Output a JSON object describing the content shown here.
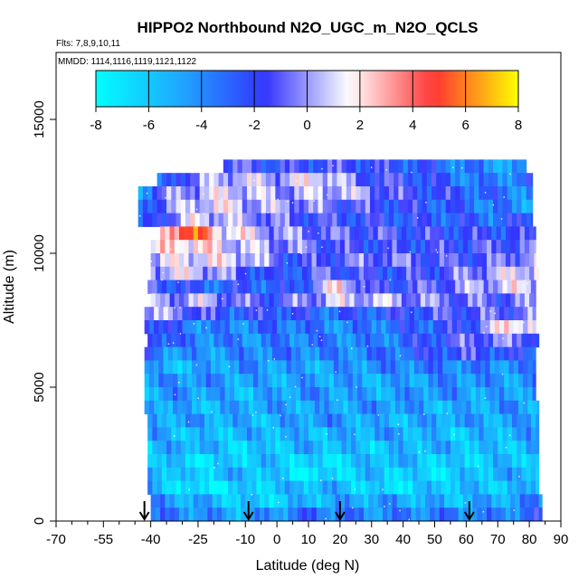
{
  "chart_data": {
    "type": "heatmap",
    "title": "HIPPO2 Northbound N2O_UGC_m_N2O_QCLS",
    "flights_label": "Flts: 7,8,9,10,11",
    "dates_label": "MMDD: 1114,1116,1119,1121,1122",
    "xlabel": "Latitude (deg N)",
    "ylabel": "Altitude (m)",
    "xlim": [
      -70,
      90
    ],
    "ylim": [
      0,
      17500
    ],
    "xticks": [
      -70,
      -55,
      -40,
      -25,
      -10,
      0,
      10,
      20,
      30,
      40,
      50,
      60,
      70,
      80,
      90
    ],
    "xtick_labels": [
      "-70",
      "-55",
      "-40",
      "-25",
      "-10",
      "0",
      "10",
      "20",
      "30",
      "40",
      "50",
      "60",
      "70",
      "80",
      "90"
    ],
    "xminor_ticks": [
      -65,
      -60,
      -50,
      -45,
      -35,
      -30,
      -20,
      -15,
      -5,
      5,
      15,
      25,
      35,
      45,
      55,
      65,
      75,
      85
    ],
    "yticks": [
      0,
      5000,
      10000,
      15000
    ],
    "ytick_labels": [
      "0",
      "5000",
      "10000",
      "15000"
    ],
    "colorbar": {
      "range": [
        -8,
        8
      ],
      "ticks": [
        "-8",
        "-6",
        "-4",
        "-2",
        "0",
        "2",
        "4",
        "6",
        "8"
      ],
      "colors": [
        "#00ffff",
        "#1fa8ff",
        "#3333ff",
        "#ffffff",
        "#ff3333",
        "#ffff00"
      ]
    },
    "profile_markers_lat": [
      -42,
      -9,
      20,
      61
    ],
    "bands": [
      {
        "alt_bot": 13000,
        "alt_top": 13500,
        "lat_min": -17,
        "lat_max": 79,
        "stops": [
          [
            -17,
            -1
          ],
          [
            0,
            -2
          ],
          [
            20,
            -1.5
          ],
          [
            45,
            -2.5
          ],
          [
            65,
            -4
          ],
          [
            79,
            -5
          ]
        ]
      },
      {
        "alt_bot": 12500,
        "alt_top": 13000,
        "lat_min": -38,
        "lat_max": 81,
        "stops": [
          [
            -38,
            -5
          ],
          [
            -30,
            -1
          ],
          [
            -15,
            0.8
          ],
          [
            0,
            0.3
          ],
          [
            15,
            1.5
          ],
          [
            25,
            -1
          ],
          [
            45,
            -2
          ],
          [
            65,
            -4
          ],
          [
            81,
            -3
          ]
        ]
      },
      {
        "alt_bot": 12000,
        "alt_top": 12500,
        "lat_min": -44,
        "lat_max": 81,
        "stops": [
          [
            -44,
            -5
          ],
          [
            -38,
            -1
          ],
          [
            -22,
            0.8
          ],
          [
            -10,
            1
          ],
          [
            0,
            0
          ],
          [
            20,
            0.8
          ],
          [
            40,
            -1.5
          ],
          [
            60,
            -2.5
          ],
          [
            81,
            -4
          ]
        ]
      },
      {
        "alt_bot": 11500,
        "alt_top": 12000,
        "lat_min": -44,
        "lat_max": 81,
        "stops": [
          [
            -44,
            -4
          ],
          [
            -36,
            -0.5
          ],
          [
            -20,
            1.5
          ],
          [
            -10,
            0.5
          ],
          [
            5,
            0
          ],
          [
            20,
            -1
          ],
          [
            40,
            -2
          ],
          [
            60,
            -3
          ],
          [
            81,
            -4.5
          ]
        ]
      },
      {
        "alt_bot": 11000,
        "alt_top": 11500,
        "lat_min": -44,
        "lat_max": 81,
        "stops": [
          [
            -44,
            -4
          ],
          [
            -36,
            -1
          ],
          [
            -25,
            1.2
          ],
          [
            -10,
            0
          ],
          [
            10,
            -1.5
          ],
          [
            30,
            -2
          ],
          [
            50,
            -2.5
          ],
          [
            70,
            -3
          ],
          [
            81,
            -2
          ]
        ]
      },
      {
        "alt_bot": 10500,
        "alt_top": 11000,
        "lat_min": -37,
        "lat_max": 82,
        "stops": [
          [
            -37,
            2
          ],
          [
            -30,
            5.5
          ],
          [
            -25,
            5
          ],
          [
            -18,
            2
          ],
          [
            0,
            0
          ],
          [
            20,
            -1
          ],
          [
            40,
            -1.5
          ],
          [
            60,
            -2
          ],
          [
            82,
            -2
          ]
        ]
      },
      {
        "alt_bot": 10000,
        "alt_top": 10500,
        "lat_min": -40,
        "lat_max": 82,
        "stops": [
          [
            -40,
            1
          ],
          [
            -30,
            2.5
          ],
          [
            -15,
            1
          ],
          [
            0,
            0
          ],
          [
            20,
            -1.5
          ],
          [
            40,
            -2
          ],
          [
            60,
            -1.5
          ],
          [
            82,
            -1
          ]
        ]
      },
      {
        "alt_bot": 9500,
        "alt_top": 10000,
        "lat_min": -40,
        "lat_max": 82,
        "stops": [
          [
            -40,
            0.5
          ],
          [
            -25,
            1.5
          ],
          [
            -10,
            1
          ],
          [
            5,
            -2
          ],
          [
            20,
            -1
          ],
          [
            35,
            -0.5
          ],
          [
            55,
            -1.5
          ],
          [
            70,
            -1
          ],
          [
            82,
            0.5
          ]
        ]
      },
      {
        "alt_bot": 9000,
        "alt_top": 9500,
        "lat_min": -40,
        "lat_max": 83,
        "stops": [
          [
            -40,
            0.5
          ],
          [
            -25,
            1
          ],
          [
            -10,
            -1.5
          ],
          [
            0,
            -3
          ],
          [
            15,
            -1
          ],
          [
            30,
            -2
          ],
          [
            50,
            -1.5
          ],
          [
            70,
            0.5
          ],
          [
            83,
            1.5
          ]
        ]
      },
      {
        "alt_bot": 8500,
        "alt_top": 9000,
        "lat_min": -41,
        "lat_max": 82,
        "stops": [
          [
            -41,
            -1
          ],
          [
            -25,
            -3
          ],
          [
            -10,
            -2.5
          ],
          [
            5,
            -3
          ],
          [
            20,
            2
          ],
          [
            30,
            -2
          ],
          [
            50,
            -1
          ],
          [
            70,
            0.8
          ],
          [
            82,
            1
          ]
        ]
      },
      {
        "alt_bot": 8000,
        "alt_top": 8500,
        "lat_min": -40,
        "lat_max": 82,
        "stops": [
          [
            -40,
            -0.5
          ],
          [
            -25,
            0.5
          ],
          [
            -10,
            -1
          ],
          [
            0,
            -1.5
          ],
          [
            15,
            0.5
          ],
          [
            30,
            0.8
          ],
          [
            50,
            -0.5
          ],
          [
            70,
            -1
          ],
          [
            82,
            -0.5
          ]
        ]
      },
      {
        "alt_bot": 7500,
        "alt_top": 8000,
        "lat_min": -42,
        "lat_max": 82,
        "stops": [
          [
            -42,
            0.3
          ],
          [
            -30,
            -0.5
          ],
          [
            -15,
            -2.5
          ],
          [
            0,
            -2
          ],
          [
            15,
            -3
          ],
          [
            30,
            -2.5
          ],
          [
            50,
            -1.5
          ],
          [
            70,
            -1
          ],
          [
            82,
            -0.5
          ]
        ]
      },
      {
        "alt_bot": 7000,
        "alt_top": 7500,
        "lat_min": -42,
        "lat_max": 82,
        "stops": [
          [
            -42,
            -1
          ],
          [
            -30,
            -3.5
          ],
          [
            -15,
            -4
          ],
          [
            0,
            -3
          ],
          [
            20,
            -4
          ],
          [
            40,
            -3
          ],
          [
            60,
            -2
          ],
          [
            75,
            2.5
          ],
          [
            82,
            1
          ]
        ]
      },
      {
        "alt_bot": 6500,
        "alt_top": 7000,
        "lat_min": -41,
        "lat_max": 83,
        "stops": [
          [
            -41,
            -1
          ],
          [
            -30,
            -3.5
          ],
          [
            -10,
            -4
          ],
          [
            10,
            -3.5
          ],
          [
            30,
            -4
          ],
          [
            50,
            -2
          ],
          [
            65,
            -0.5
          ],
          [
            83,
            -1
          ]
        ]
      },
      {
        "alt_bot": 6000,
        "alt_top": 6500,
        "lat_min": -42,
        "lat_max": 82,
        "stops": [
          [
            -42,
            -3
          ],
          [
            -30,
            -4.5
          ],
          [
            -15,
            -4.2
          ],
          [
            0,
            -3.5
          ],
          [
            20,
            -4
          ],
          [
            40,
            -3
          ],
          [
            60,
            -1.5
          ],
          [
            82,
            -3
          ]
        ]
      },
      {
        "alt_bot": 5500,
        "alt_top": 6000,
        "lat_min": -42,
        "lat_max": 82,
        "stops": [
          [
            -42,
            -5
          ],
          [
            -30,
            -5.5
          ],
          [
            -10,
            -4
          ],
          [
            10,
            -5
          ],
          [
            30,
            -4
          ],
          [
            50,
            -3.5
          ],
          [
            70,
            -4
          ],
          [
            82,
            -4
          ]
        ]
      },
      {
        "alt_bot": 5000,
        "alt_top": 5500,
        "lat_min": -42,
        "lat_max": 82,
        "stops": [
          [
            -42,
            -4.5
          ],
          [
            -25,
            -4
          ],
          [
            -5,
            -5
          ],
          [
            15,
            -4.5
          ],
          [
            35,
            -5
          ],
          [
            55,
            -4
          ],
          [
            75,
            -4.5
          ],
          [
            82,
            -4
          ]
        ]
      },
      {
        "alt_bot": 4500,
        "alt_top": 5000,
        "lat_min": -42,
        "lat_max": 82,
        "stops": [
          [
            -42,
            -5
          ],
          [
            -30,
            -4
          ],
          [
            -10,
            -5.5
          ],
          [
            10,
            -4
          ],
          [
            30,
            -5
          ],
          [
            50,
            -4
          ],
          [
            70,
            -5
          ],
          [
            82,
            -4
          ]
        ]
      },
      {
        "alt_bot": 4000,
        "alt_top": 4500,
        "lat_min": -42,
        "lat_max": 83,
        "stops": [
          [
            -42,
            -4
          ],
          [
            -25,
            -5.5
          ],
          [
            -5,
            -4.5
          ],
          [
            15,
            -5
          ],
          [
            35,
            -4
          ],
          [
            55,
            -5.5
          ],
          [
            75,
            -4
          ],
          [
            83,
            -5
          ]
        ]
      },
      {
        "alt_bot": 3500,
        "alt_top": 4000,
        "lat_min": -41,
        "lat_max": 83,
        "stops": [
          [
            -41,
            -5
          ],
          [
            -25,
            -4.5
          ],
          [
            -5,
            -5.5
          ],
          [
            15,
            -4
          ],
          [
            35,
            -5.5
          ],
          [
            55,
            -4.5
          ],
          [
            75,
            -5
          ],
          [
            83,
            -4
          ]
        ]
      },
      {
        "alt_bot": 3000,
        "alt_top": 3500,
        "lat_min": -41,
        "lat_max": 83,
        "stops": [
          [
            -41,
            -4.5
          ],
          [
            -25,
            -6
          ],
          [
            -5,
            -5
          ],
          [
            15,
            -5.5
          ],
          [
            35,
            -4.5
          ],
          [
            55,
            -6
          ],
          [
            75,
            -5
          ],
          [
            83,
            -4.5
          ]
        ]
      },
      {
        "alt_bot": 2500,
        "alt_top": 3000,
        "lat_min": -41,
        "lat_max": 83,
        "stops": [
          [
            -41,
            -6
          ],
          [
            -30,
            -4.5
          ],
          [
            -10,
            -6.5
          ],
          [
            10,
            -5
          ],
          [
            30,
            -6
          ],
          [
            50,
            -5
          ],
          [
            70,
            -6
          ],
          [
            83,
            -5
          ]
        ]
      },
      {
        "alt_bot": 2000,
        "alt_top": 2500,
        "lat_min": -41,
        "lat_max": 83,
        "stops": [
          [
            -41,
            -5
          ],
          [
            -25,
            -7
          ],
          [
            -5,
            -5.5
          ],
          [
            15,
            -7
          ],
          [
            35,
            -5
          ],
          [
            55,
            -6.5
          ],
          [
            75,
            -5.5
          ],
          [
            83,
            -6
          ]
        ]
      },
      {
        "alt_bot": 1500,
        "alt_top": 2000,
        "lat_min": -41,
        "lat_max": 83,
        "stops": [
          [
            -41,
            -4
          ],
          [
            -30,
            -6.5
          ],
          [
            -10,
            -5
          ],
          [
            10,
            -7.5
          ],
          [
            30,
            -5.5
          ],
          [
            50,
            -7
          ],
          [
            70,
            -5
          ],
          [
            83,
            -5
          ]
        ]
      },
      {
        "alt_bot": 1000,
        "alt_top": 1500,
        "lat_min": -41,
        "lat_max": 83,
        "stops": [
          [
            -41,
            -5
          ],
          [
            -25,
            -7.5
          ],
          [
            -5,
            -6
          ],
          [
            15,
            -5
          ],
          [
            35,
            -7
          ],
          [
            55,
            -5.5
          ],
          [
            75,
            -6
          ],
          [
            83,
            -4.5
          ]
        ]
      },
      {
        "alt_bot": 500,
        "alt_top": 1000,
        "lat_min": -40,
        "lat_max": 84,
        "stops": [
          [
            -40,
            -4
          ],
          [
            -25,
            -5
          ],
          [
            -5,
            -6.5
          ],
          [
            15,
            -5
          ],
          [
            35,
            -4.5
          ],
          [
            55,
            -5.5
          ],
          [
            75,
            -4.5
          ],
          [
            84,
            -3.5
          ]
        ]
      },
      {
        "alt_bot": 0,
        "alt_top": 500,
        "lat_min": -40,
        "lat_max": 84,
        "stops": [
          [
            -40,
            -3.5
          ],
          [
            -25,
            -4
          ],
          [
            -10,
            -5
          ],
          [
            10,
            -3
          ],
          [
            30,
            -4
          ],
          [
            50,
            -3.5
          ],
          [
            70,
            -4
          ],
          [
            84,
            -2.5
          ]
        ]
      }
    ]
  }
}
